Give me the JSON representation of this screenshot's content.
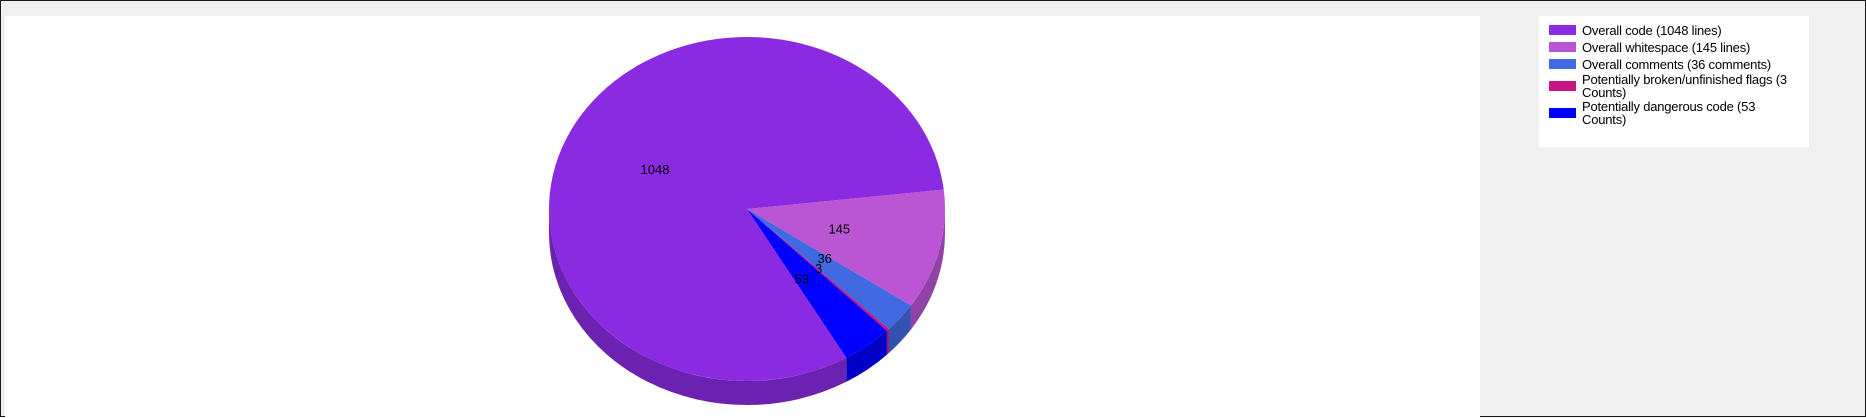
{
  "chart_data": {
    "type": "pie",
    "style": "3d",
    "categories": [
      "Overall code (1048 lines)",
      "Overall whitespace (145 lines)",
      "Overall comments (36 comments)",
      "Potentially broken/unfinished flags (3 Counts)",
      "Potentially dangerous code (53 Counts)"
    ],
    "values": [
      1048,
      145,
      36,
      3,
      53
    ],
    "data_labels": [
      "1048",
      "145",
      "36",
      "3",
      "53"
    ],
    "colors": [
      "#8a2be2",
      "#ba55d3",
      "#4169e1",
      "#c71585",
      "#0000ff"
    ],
    "legend_position": "top-right"
  }
}
